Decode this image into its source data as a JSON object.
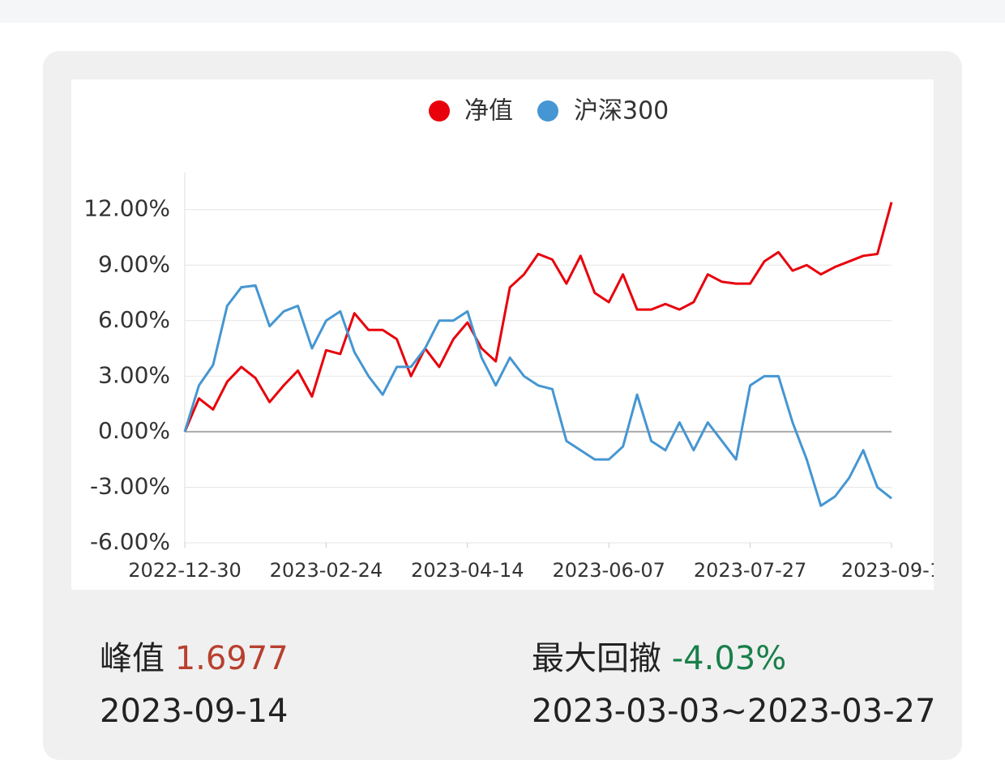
{
  "chart_data": {
    "type": "line",
    "categories": [
      "2022-12-30",
      null,
      null,
      null,
      null,
      null,
      null,
      null,
      null,
      null,
      "2023-02-24",
      null,
      null,
      null,
      null,
      null,
      null,
      null,
      null,
      null,
      "2023-04-14",
      null,
      null,
      null,
      null,
      null,
      null,
      null,
      null,
      null,
      "2023-06-07",
      null,
      null,
      null,
      null,
      null,
      null,
      null,
      null,
      null,
      "2023-07-27",
      null,
      null,
      null,
      null,
      null,
      null,
      null,
      null,
      null,
      "2023-09-1"
    ],
    "series": [
      {
        "name": "净值",
        "color": "#e8000b",
        "values": [
          0,
          1.8,
          1.2,
          2.7,
          3.5,
          2.9,
          1.6,
          2.5,
          3.3,
          1.9,
          4.4,
          4.2,
          6.4,
          5.5,
          5.5,
          5.0,
          3.0,
          4.5,
          3.5,
          5.0,
          5.9,
          4.5,
          3.8,
          7.8,
          8.5,
          9.6,
          9.3,
          8.0,
          9.5,
          7.5,
          7.0,
          8.5,
          6.6,
          6.6,
          6.9,
          6.6,
          7.0,
          8.5,
          8.1,
          8.0,
          8.0,
          9.2,
          9.7,
          8.7,
          9.0,
          8.5,
          8.9,
          9.2,
          9.5,
          9.6,
          12.4
        ]
      },
      {
        "name": "沪深300",
        "color": "#4596d2",
        "values": [
          0,
          2.5,
          3.6,
          6.8,
          7.8,
          7.9,
          5.7,
          6.5,
          6.8,
          4.5,
          6.0,
          6.5,
          4.3,
          3.0,
          2.0,
          3.5,
          3.5,
          4.5,
          6.0,
          6.0,
          6.5,
          4.0,
          2.5,
          4.0,
          3.0,
          2.5,
          2.3,
          -0.5,
          -1.0,
          -1.5,
          -1.5,
          -0.8,
          2.0,
          -0.5,
          -1.0,
          0.5,
          -1.0,
          0.5,
          -0.5,
          -1.5,
          2.5,
          3.0,
          3.0,
          0.5,
          -1.5,
          -4.0,
          -3.5,
          -2.5,
          -1.0,
          -3.0,
          -3.6
        ]
      }
    ],
    "ylim": [
      -6,
      14
    ],
    "yticks": [
      {
        "value": -6,
        "label": "-6.00%"
      },
      {
        "value": -3,
        "label": "-3.00%"
      },
      {
        "value": 0,
        "label": "0.00%"
      },
      {
        "value": 3,
        "label": "3.00%"
      },
      {
        "value": 6,
        "label": "6.00%"
      },
      {
        "value": 9,
        "label": "9.00%"
      },
      {
        "value": 12,
        "label": "12.00%"
      }
    ],
    "grid": true,
    "legend": "top"
  },
  "stats": {
    "peak_label": "峰值",
    "peak_value": "1.6977",
    "peak_date": "2023-09-14",
    "drawdown_label": "最大回撤",
    "drawdown_value": "-4.03%",
    "drawdown_period": "2023-03-03~2023-03-27"
  }
}
